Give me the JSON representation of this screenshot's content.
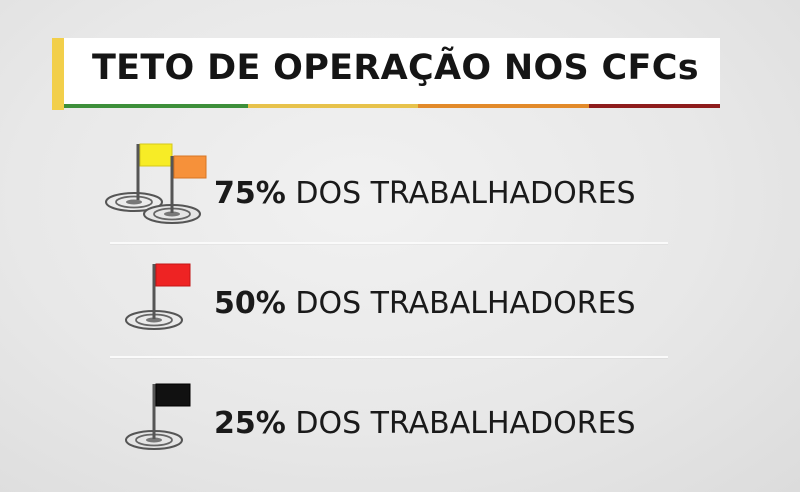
{
  "title": {
    "text": "TETO DE OPERAÇÃO NOS CFCs",
    "accent_color": "#f2cf4a",
    "stripe_colors": [
      "#3d8f3a",
      "#e7c24b",
      "#e28a2a",
      "#8e1c1c"
    ]
  },
  "rows": [
    {
      "percent": "75%",
      "label": "DOS TRABALHADORES",
      "flags": [
        "yellow-flag-icon",
        "orange-flag-icon"
      ],
      "flag_colors": [
        "#f7ec26",
        "#f6913a"
      ]
    },
    {
      "percent": "50%",
      "label": "DOS TRABALHADORES",
      "flags": [
        "red-flag-icon"
      ],
      "flag_colors": [
        "#ee2323"
      ]
    },
    {
      "percent": "25%",
      "label": "DOS TRABALHADORES",
      "flags": [
        "black-flag-icon"
      ],
      "flag_colors": [
        "#111111"
      ]
    }
  ]
}
